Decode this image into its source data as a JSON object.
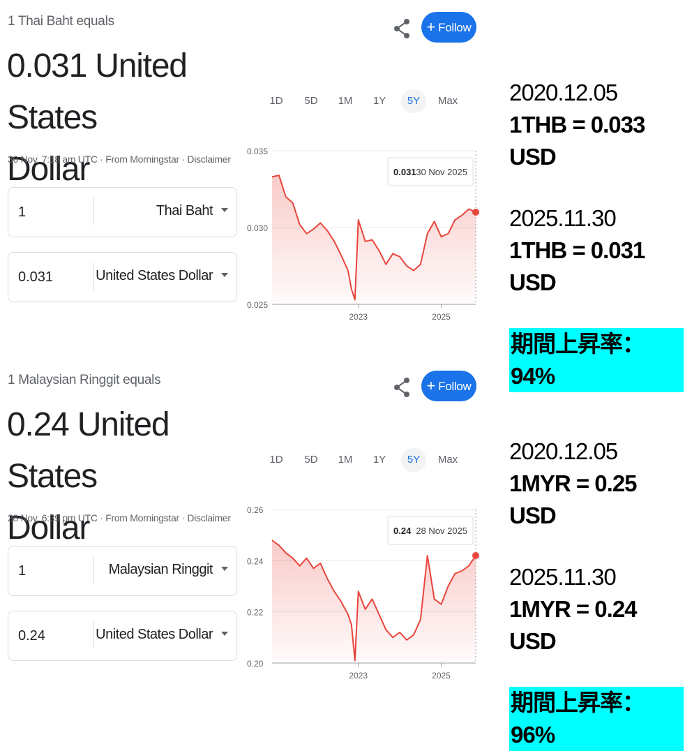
{
  "panels": [
    {
      "equals_label": "1 Thai Baht equals",
      "result_line1": "0.031 United States",
      "result_line2": "Dollar",
      "meta_time": "30 Nov, 7:18 am UTC",
      "meta_source": "From Morningstar",
      "meta_disclaimer": "Disclaimer",
      "from_amount": "1",
      "from_currency": "Thai Baht",
      "to_amount": "0.031",
      "to_currency": "United States Dollar",
      "follow_label": "Follow",
      "ranges": [
        "1D",
        "5D",
        "1M",
        "1Y",
        "5Y",
        "Max"
      ],
      "active_range": "5Y",
      "tooltip_value": "0.031",
      "tooltip_date": "30 Nov 2025",
      "note_start_date": "2020.12.05",
      "note_start_rate": "1THB = 0.033 USD",
      "note_end_date": "2025.11.30",
      "note_end_rate": "1THB = 0.031 USD",
      "note_rise": "期間上昇率：94%"
    },
    {
      "equals_label": "1 Malaysian Ringgit equals",
      "result_line1": "0.24 United States",
      "result_line2": "Dollar",
      "meta_time": "28 Nov, 6:39 pm UTC",
      "meta_source": "From Morningstar",
      "meta_disclaimer": "Disclaimer",
      "from_amount": "1",
      "from_currency": "Malaysian Ringgit",
      "to_amount": "0.24",
      "to_currency": "United States Dollar",
      "follow_label": "Follow",
      "ranges": [
        "1D",
        "5D",
        "1M",
        "1Y",
        "5Y",
        "Max"
      ],
      "active_range": "5Y",
      "tooltip_value": "0.24",
      "tooltip_date": "28 Nov 2025",
      "note_start_date": "2020.12.05",
      "note_start_rate": "1MYR = 0.25 USD",
      "note_end_date": "2025.11.30",
      "note_end_rate": "1MYR = 0.24 USD",
      "note_rise": "期間上昇率：96%"
    }
  ],
  "colors": {
    "accent": "#1a73e8",
    "line": "#e8453c",
    "highlight": "#00ffff"
  },
  "chart_data": [
    {
      "type": "area",
      "ylim": [
        0.025,
        0.035
      ],
      "yticks": [
        "0.035",
        "0.030",
        "0.025"
      ],
      "xticks": [
        "2023",
        "2025"
      ],
      "x": [
        "2020-12",
        "2021-02",
        "2021-04",
        "2021-06",
        "2021-08",
        "2021-10",
        "2021-12",
        "2022-02",
        "2022-04",
        "2022-06",
        "2022-08",
        "2022-10",
        "2022-11",
        "2022-12",
        "2023-01",
        "2023-03",
        "2023-05",
        "2023-07",
        "2023-09",
        "2023-11",
        "2024-01",
        "2024-03",
        "2024-05",
        "2024-07",
        "2024-09",
        "2024-11",
        "2025-01",
        "2025-03",
        "2025-05",
        "2025-07",
        "2025-09",
        "2025-11"
      ],
      "values": [
        0.0333,
        0.0334,
        0.032,
        0.0316,
        0.0302,
        0.0296,
        0.0299,
        0.0303,
        0.0298,
        0.0291,
        0.0282,
        0.0272,
        0.026,
        0.0253,
        0.0305,
        0.0291,
        0.0292,
        0.0285,
        0.0276,
        0.0283,
        0.0281,
        0.0275,
        0.0272,
        0.0276,
        0.0296,
        0.0304,
        0.0294,
        0.0296,
        0.0305,
        0.0308,
        0.0312,
        0.031
      ]
    },
    {
      "type": "area",
      "ylim": [
        0.2,
        0.26
      ],
      "yticks": [
        "0.26",
        "0.24",
        "0.22",
        "0.20"
      ],
      "xticks": [
        "2023",
        "2025"
      ],
      "x": [
        "2020-12",
        "2021-02",
        "2021-04",
        "2021-06",
        "2021-08",
        "2021-10",
        "2021-12",
        "2022-02",
        "2022-04",
        "2022-06",
        "2022-08",
        "2022-10",
        "2022-11",
        "2022-12",
        "2023-01",
        "2023-03",
        "2023-05",
        "2023-07",
        "2023-09",
        "2023-11",
        "2024-01",
        "2024-03",
        "2024-05",
        "2024-07",
        "2024-09",
        "2024-11",
        "2025-01",
        "2025-03",
        "2025-05",
        "2025-07",
        "2025-09",
        "2025-11"
      ],
      "values": [
        0.248,
        0.246,
        0.243,
        0.241,
        0.238,
        0.241,
        0.237,
        0.239,
        0.233,
        0.228,
        0.224,
        0.219,
        0.215,
        0.201,
        0.228,
        0.221,
        0.225,
        0.219,
        0.213,
        0.21,
        0.212,
        0.209,
        0.211,
        0.217,
        0.242,
        0.225,
        0.223,
        0.23,
        0.235,
        0.236,
        0.238,
        0.242
      ]
    }
  ]
}
